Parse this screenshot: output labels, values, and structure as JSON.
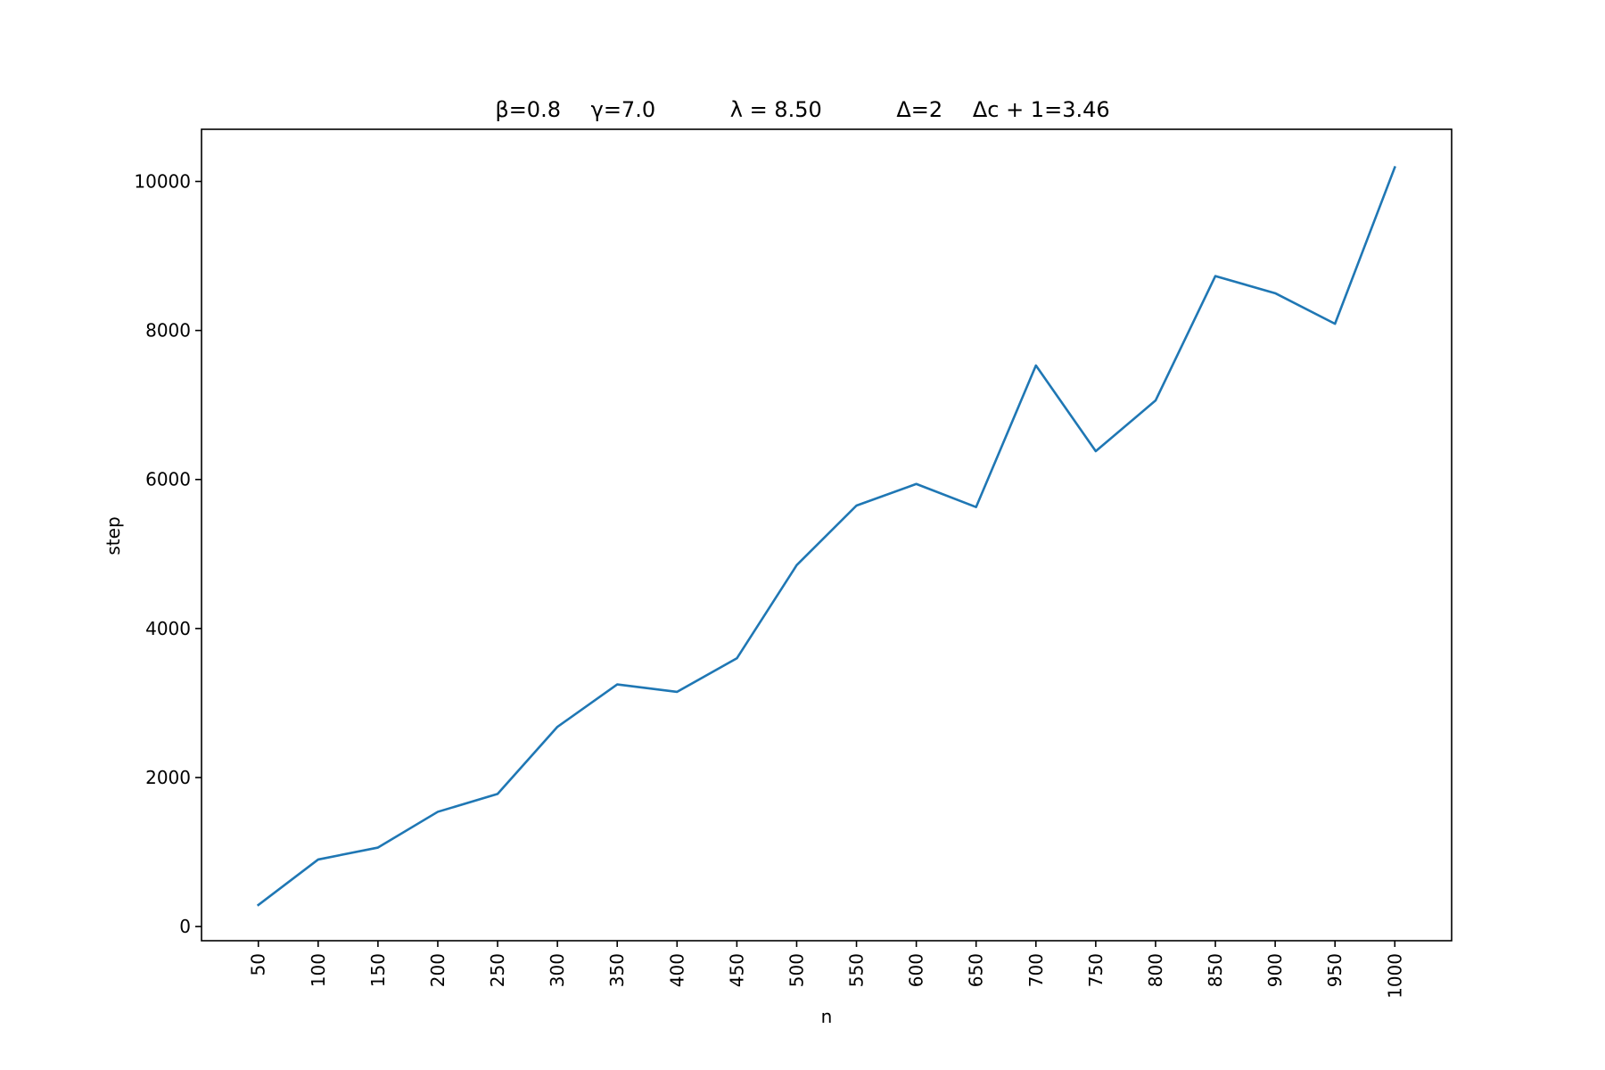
{
  "chart_data": {
    "type": "line",
    "title": {
      "beta": "β=0.8",
      "gamma": "γ=7.0",
      "lambda": "λ = 8.50",
      "delta": "Δ=2",
      "delta_c": "Δc + 1=3.46"
    },
    "xlabel": "n",
    "ylabel": "step",
    "x": [
      50,
      100,
      150,
      200,
      250,
      300,
      350,
      400,
      450,
      500,
      550,
      600,
      650,
      700,
      750,
      800,
      850,
      900,
      950,
      1000
    ],
    "x_tick_labels": [
      "50",
      "100",
      "150",
      "200",
      "250",
      "300",
      "350",
      "400",
      "450",
      "500",
      "550",
      "600",
      "650",
      "700",
      "750",
      "800",
      "850",
      "900",
      "950",
      "1000"
    ],
    "y_ticks": [
      0,
      2000,
      4000,
      6000,
      8000,
      10000
    ],
    "y_tick_labels": [
      "0",
      "2000",
      "4000",
      "6000",
      "8000",
      "10000"
    ],
    "ylim": [
      -190,
      10700
    ],
    "xlim": [
      2.5,
      1047.5
    ],
    "grid": false,
    "legend": "none",
    "series": [
      {
        "color": "#1f77b4",
        "values": [
          290,
          900,
          1060,
          1540,
          1780,
          2680,
          3250,
          3150,
          3600,
          4850,
          5650,
          5940,
          5630,
          7530,
          6380,
          7060,
          8730,
          8500,
          8090,
          10190
        ]
      }
    ]
  }
}
